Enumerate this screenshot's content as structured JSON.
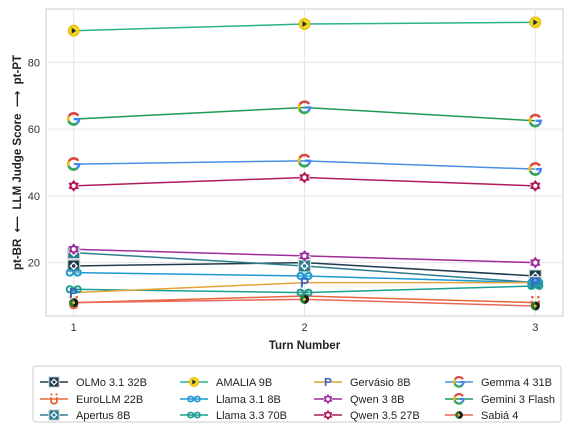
{
  "chart_data": {
    "type": "line",
    "xlabel": "Turn Number",
    "ylabel": "pt-BR  ⟵  LLM Judge Score  ⟶  pt-PT",
    "x": [
      1,
      2,
      3
    ],
    "xlim": [
      0.88,
      3.12
    ],
    "ylim": [
      4,
      96
    ],
    "yticks": [
      20,
      40,
      60,
      80
    ],
    "xticks": [
      1,
      2,
      3
    ],
    "grid": true,
    "legend_position": "bottom",
    "series": [
      {
        "name": "OLMo 3.1 32B",
        "color": "#1f3b4d",
        "marker": "square-icon",
        "values": [
          19,
          20,
          16
        ]
      },
      {
        "name": "EuroLLM 22B",
        "color": "#e8663a",
        "marker": "u-umlaut-icon",
        "values": [
          8,
          10,
          8
        ]
      },
      {
        "name": "Apertus 8B",
        "color": "#2e7d8f",
        "marker": "square-icon",
        "values": [
          23,
          19,
          14
        ]
      },
      {
        "name": "AMALIA 9B",
        "color": "#2bb38e",
        "marker": "yellow-circle-icon",
        "values": [
          89.5,
          91.5,
          92
        ]
      },
      {
        "name": "Llama 3.1 8B",
        "color": "#1f9ad0",
        "marker": "infinity-icon",
        "values": [
          17,
          16,
          14
        ]
      },
      {
        "name": "Llama 3.3 70B",
        "color": "#1aa092",
        "marker": "infinity-icon",
        "values": [
          12,
          11,
          13
        ]
      },
      {
        "name": "Gervásio 8B",
        "color": "#e8a23a",
        "marker": "p-letter-icon",
        "values": [
          11,
          14,
          14
        ]
      },
      {
        "name": "Qwen 3 8B",
        "color": "#9d2d9a",
        "marker": "star-icon",
        "values": [
          24,
          22,
          20
        ]
      },
      {
        "name": "Qwen 3.5 27B",
        "color": "#b2185c",
        "marker": "star-icon",
        "values": [
          43,
          45.5,
          43
        ]
      },
      {
        "name": "Gemma 4 31B",
        "color": "#4a90e2",
        "marker": "g-logo-icon",
        "values": [
          49.5,
          50.5,
          48
        ]
      },
      {
        "name": "Gemini 3 Flash",
        "color": "#1e9a52",
        "marker": "g-logo-icon",
        "values": [
          63,
          66.5,
          62.5
        ]
      },
      {
        "name": "Sabiá 4",
        "color": "#e9685a",
        "marker": "dot-icon",
        "values": [
          8,
          9,
          7
        ]
      }
    ]
  }
}
